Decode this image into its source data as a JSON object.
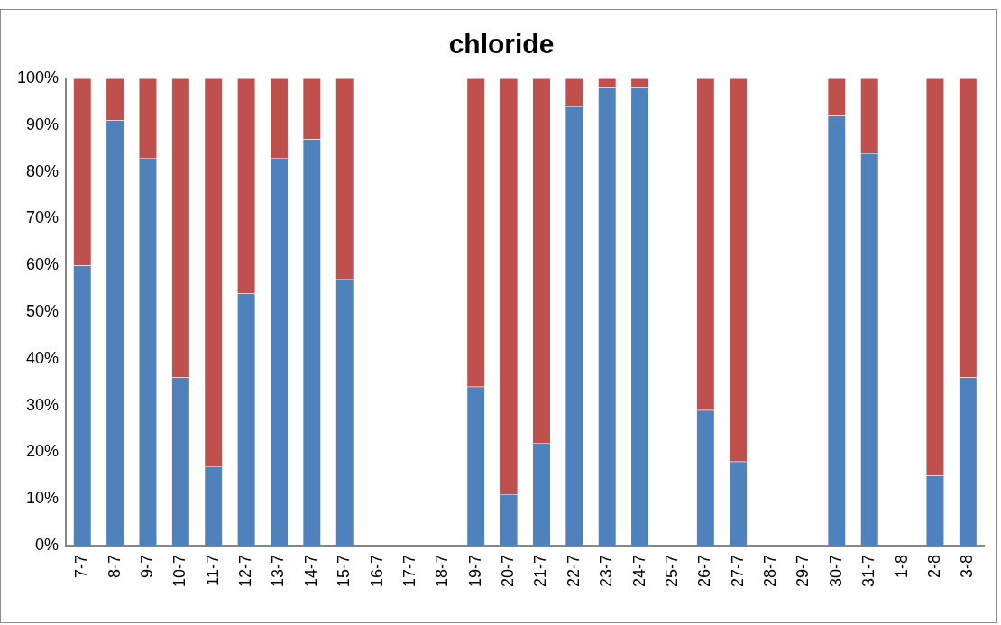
{
  "chart_data": {
    "type": "bar",
    "title": "chloride",
    "stacked": true,
    "categories": [
      "7-7",
      "8-7",
      "9-7",
      "10-7",
      "11-7",
      "12-7",
      "13-7",
      "14-7",
      "15-7",
      "16-7",
      "17-7",
      "18-7",
      "19-7",
      "20-7",
      "21-7",
      "22-7",
      "23-7",
      "24-7",
      "25-7",
      "26-7",
      "27-7",
      "28-7",
      "29-7",
      "30-7",
      "31-7",
      "1-8",
      "2-8",
      "3-8"
    ],
    "series": [
      {
        "color": "#4f81bd",
        "values": [
          60,
          91,
          83,
          36,
          17,
          54,
          83,
          87,
          57,
          null,
          null,
          null,
          34,
          11,
          22,
          94,
          98,
          98,
          null,
          29,
          18,
          null,
          null,
          92,
          84,
          null,
          15,
          36
        ]
      },
      {
        "color": "#c0504d",
        "values": [
          40,
          9,
          17,
          64,
          83,
          46,
          17,
          13,
          43,
          null,
          null,
          null,
          66,
          89,
          78,
          6,
          2,
          2,
          null,
          71,
          82,
          null,
          null,
          8,
          16,
          null,
          85,
          64
        ]
      }
    ],
    "ylim": [
      0,
      100
    ],
    "yticks": [
      {
        "value": 0,
        "label": "0%"
      },
      {
        "value": 10,
        "label": "10%"
      },
      {
        "value": 20,
        "label": "20%"
      },
      {
        "value": 30,
        "label": "30%"
      },
      {
        "value": 40,
        "label": "40%"
      },
      {
        "value": 50,
        "label": "50%"
      },
      {
        "value": 60,
        "label": "60%"
      },
      {
        "value": 70,
        "label": "70%"
      },
      {
        "value": 80,
        "label": "80%"
      },
      {
        "value": 90,
        "label": "90%"
      },
      {
        "value": 100,
        "label": "100%"
      }
    ],
    "grid": false,
    "legend": false
  }
}
